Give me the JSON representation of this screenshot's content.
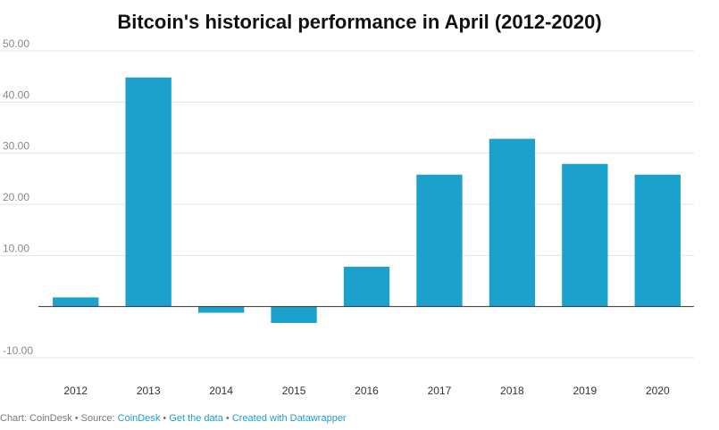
{
  "chart_data": {
    "type": "bar",
    "title": "Bitcoin's historical performance in April (2012-2020)",
    "categories": [
      "2012",
      "2013",
      "2014",
      "2015",
      "2016",
      "2017",
      "2018",
      "2019",
      "2020"
    ],
    "values": [
      1.8,
      44.8,
      -1.2,
      -3.2,
      7.8,
      25.8,
      32.8,
      27.9,
      25.8
    ],
    "yticks": [
      50,
      40,
      30,
      20,
      10,
      0,
      -10
    ],
    "ytick_labels": [
      "50.00",
      "40.00",
      "30.00",
      "20.00",
      "10.00",
      "",
      "-10.00"
    ],
    "ylim": [
      -10,
      50
    ],
    "grid": true,
    "bar_color": "#1ba1cc"
  },
  "footer": {
    "chart_by": "Chart: CoinDesk",
    "sep1": " • Source: ",
    "source": "CoinDesk",
    "sep2": " • ",
    "get_data": "Get the data",
    "sep3": " • ",
    "created_with": "Created with Datawrapper"
  }
}
